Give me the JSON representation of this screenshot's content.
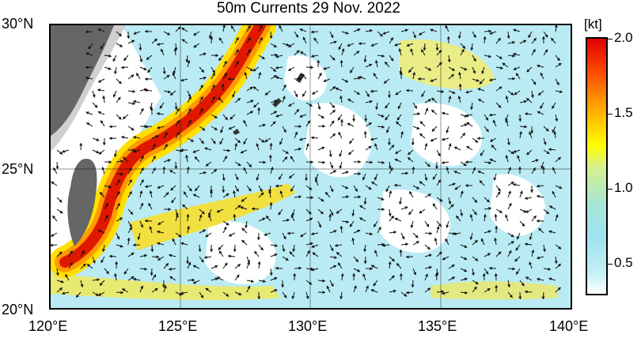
{
  "title": "50m Currents  29 Nov. 2022",
  "axes": {
    "lat_labels": [
      "30°N",
      "25°N",
      "20°N"
    ],
    "lon_labels": [
      "120°E",
      "125°E",
      "130°E",
      "135°E",
      "140°E"
    ],
    "lat_range": [
      20,
      30
    ],
    "lon_range": [
      120,
      140
    ],
    "grid": true
  },
  "colorbar": {
    "unit": "[kt]",
    "ticks": [
      "2.0",
      "1.5",
      "1.0",
      "0.5"
    ],
    "range": [
      0.25,
      2.0
    ],
    "colors": [
      "#ffffff",
      "#c4f0f6",
      "#9ee4ef",
      "#d8f08a",
      "#ffff00",
      "#ff9a00",
      "#e00000"
    ]
  },
  "colors": {
    "land": "#666666",
    "shelf": "#d0d0d0",
    "low_speed": "#aee8f2",
    "kuroshio_core": "#e01800"
  }
}
